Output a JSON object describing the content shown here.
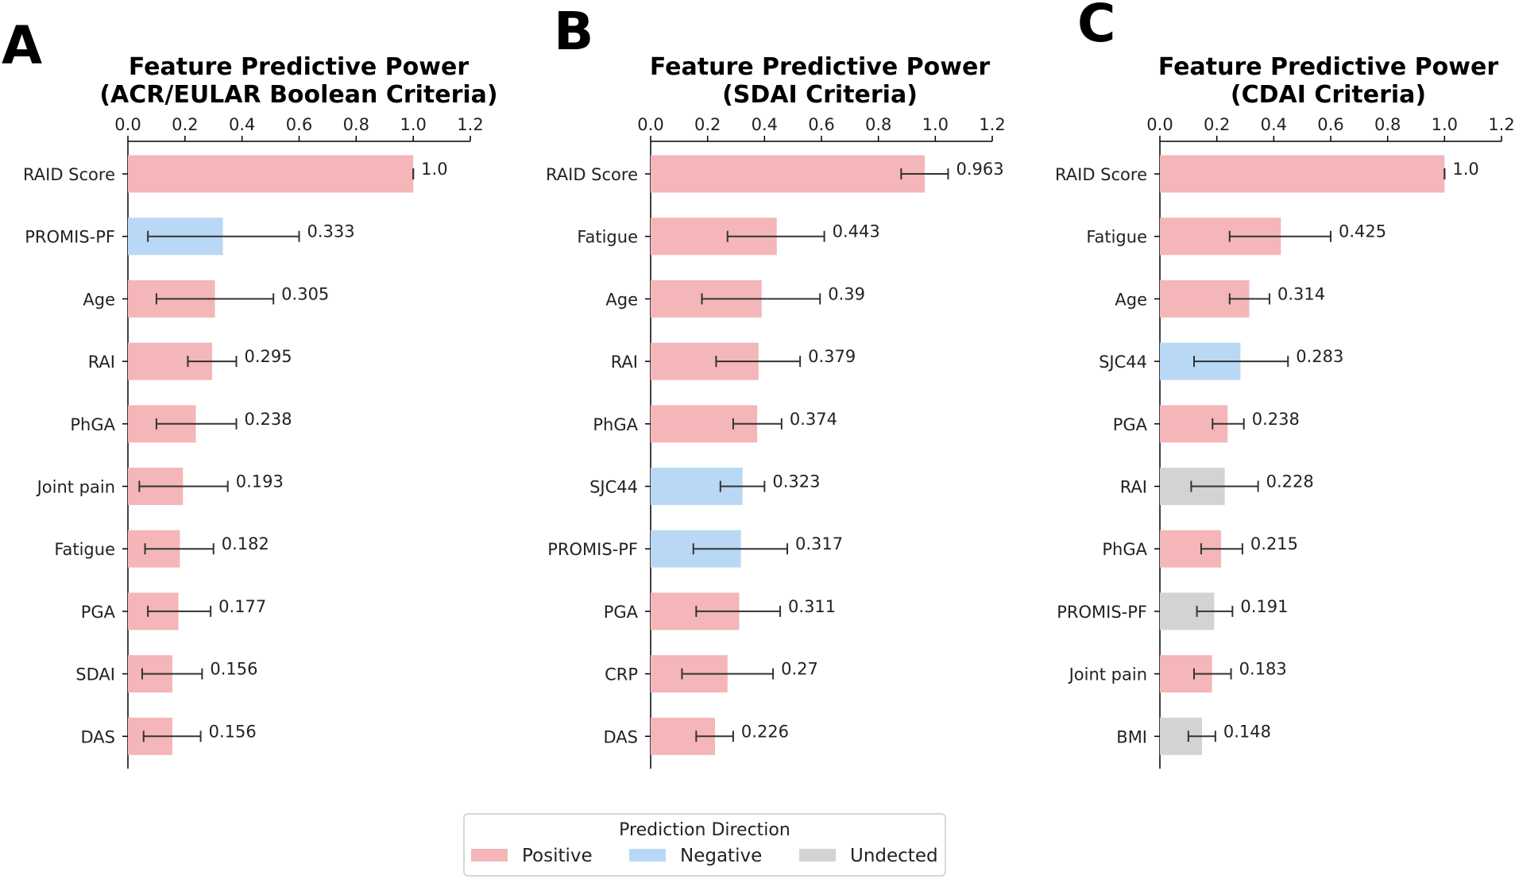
{
  "colors": {
    "positive": "#f4b6b8",
    "negative": "#b9d8f5",
    "undected": "#d3d3d3",
    "axis": "#000000",
    "errorbar": "#333333"
  },
  "chart_data": [
    {
      "type": "bar",
      "orientation": "horizontal",
      "panel_letter": "A",
      "title": "Feature Predictive Power",
      "subtitle": "(ACR/EULAR Boolean Criteria)",
      "xlim": [
        0,
        1.2
      ],
      "xticks": [
        "0.0",
        "0.2",
        "0.4",
        "0.6",
        "0.8",
        "1.0",
        "1.2"
      ],
      "categories": [
        "RAID Score",
        "PROMIS-PF",
        "Age",
        "RAI",
        "PhGA",
        "Joint pain",
        "Fatigue",
        "PGA",
        "SDAI",
        "DAS"
      ],
      "values": [
        1.0,
        0.333,
        0.305,
        0.295,
        0.238,
        0.193,
        0.182,
        0.177,
        0.156,
        0.156
      ],
      "value_labels": [
        "1.0",
        "0.333",
        "0.305",
        "0.295",
        "0.238",
        "0.193",
        "0.182",
        "0.177",
        "0.156",
        "0.156"
      ],
      "error_low": [
        1.0,
        0.07,
        0.1,
        0.21,
        0.1,
        0.04,
        0.06,
        0.07,
        0.05,
        0.055
      ],
      "error_high": [
        1.0,
        0.6,
        0.51,
        0.38,
        0.38,
        0.35,
        0.3,
        0.29,
        0.26,
        0.255
      ],
      "directions": [
        "positive",
        "negative",
        "positive",
        "positive",
        "positive",
        "positive",
        "positive",
        "positive",
        "positive",
        "positive"
      ]
    },
    {
      "type": "bar",
      "orientation": "horizontal",
      "panel_letter": "B",
      "title": "Feature Predictive Power",
      "subtitle": "(SDAI Criteria)",
      "xlim": [
        0,
        1.2
      ],
      "xticks": [
        "0.0",
        "0.2",
        "0.4",
        "0.6",
        "0.8",
        "1.0",
        "1.2"
      ],
      "categories": [
        "RAID Score",
        "Fatigue",
        "Age",
        "RAI",
        "PhGA",
        "SJC44",
        "PROMIS-PF",
        "PGA",
        "CRP",
        "DAS"
      ],
      "values": [
        0.963,
        0.443,
        0.39,
        0.379,
        0.374,
        0.323,
        0.317,
        0.311,
        0.27,
        0.226
      ],
      "value_labels": [
        "0.963",
        "0.443",
        "0.39",
        "0.379",
        "0.374",
        "0.323",
        "0.317",
        "0.311",
        "0.27",
        "0.226"
      ],
      "error_low": [
        0.88,
        0.27,
        0.18,
        0.23,
        0.29,
        0.245,
        0.15,
        0.16,
        0.11,
        0.16
      ],
      "error_high": [
        1.045,
        0.61,
        0.595,
        0.525,
        0.46,
        0.4,
        0.48,
        0.455,
        0.43,
        0.29
      ],
      "directions": [
        "positive",
        "positive",
        "positive",
        "positive",
        "positive",
        "negative",
        "negative",
        "positive",
        "positive",
        "positive"
      ]
    },
    {
      "type": "bar",
      "orientation": "horizontal",
      "panel_letter": "C",
      "title": "Feature Predictive Power",
      "subtitle": "(CDAI Criteria)",
      "xlim": [
        0,
        1.2
      ],
      "xticks": [
        "0.0",
        "0.2",
        "0.4",
        "0.6",
        "0.8",
        "1.0",
        "1.2"
      ],
      "categories": [
        "RAID Score",
        "Fatigue",
        "Age",
        "SJC44",
        "PGA",
        "RAI",
        "PhGA",
        "PROMIS-PF",
        "Joint pain",
        "BMI"
      ],
      "values": [
        1.0,
        0.425,
        0.314,
        0.283,
        0.238,
        0.228,
        0.215,
        0.191,
        0.183,
        0.148
      ],
      "value_labels": [
        "1.0",
        "0.425",
        "0.314",
        "0.283",
        "0.238",
        "0.228",
        "0.215",
        "0.191",
        "0.183",
        "0.148"
      ],
      "error_low": [
        1.0,
        0.245,
        0.245,
        0.12,
        0.185,
        0.11,
        0.145,
        0.13,
        0.12,
        0.1
      ],
      "error_high": [
        1.0,
        0.6,
        0.385,
        0.45,
        0.295,
        0.345,
        0.29,
        0.255,
        0.25,
        0.195
      ],
      "directions": [
        "positive",
        "positive",
        "positive",
        "negative",
        "positive",
        "undected",
        "positive",
        "undected",
        "positive",
        "undected"
      ]
    }
  ],
  "legend": {
    "title": "Prediction Direction",
    "items": [
      {
        "label": "Positive",
        "direction": "positive"
      },
      {
        "label": "Negative",
        "direction": "negative"
      },
      {
        "label": "Undected",
        "direction": "undected"
      }
    ]
  }
}
